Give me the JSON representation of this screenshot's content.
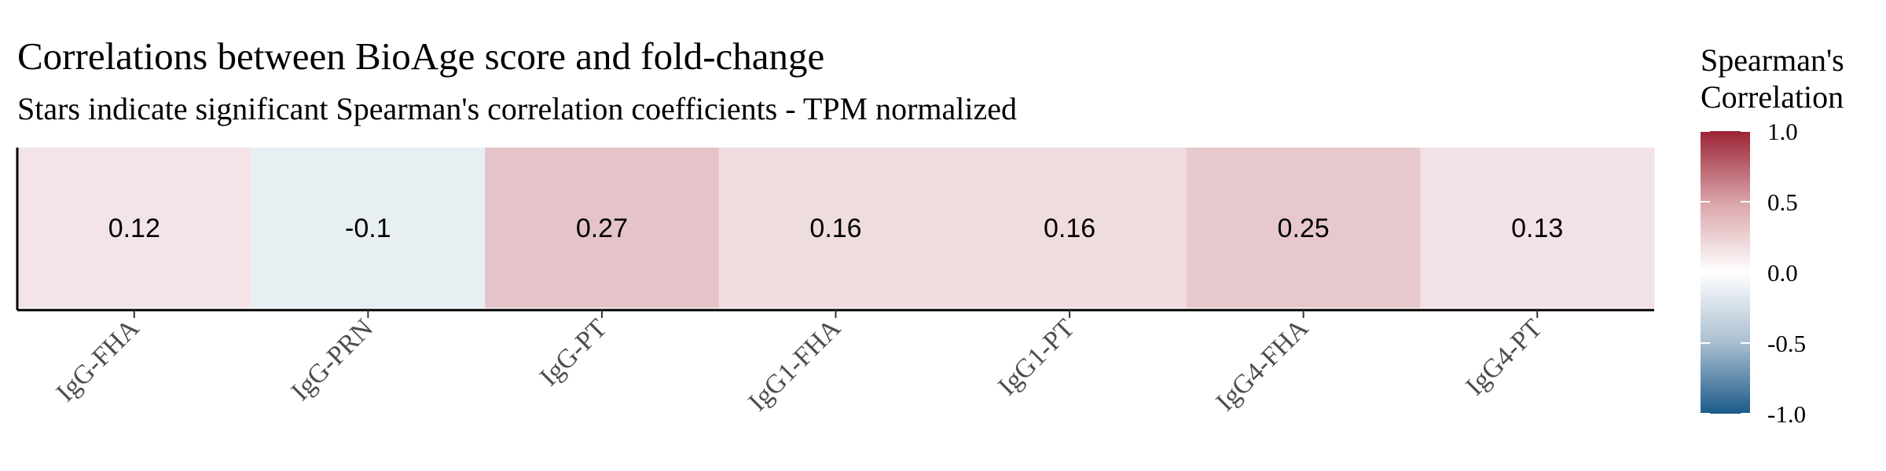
{
  "chart_data": {
    "type": "heatmap",
    "title": "Correlations between BioAge score and fold-change",
    "subtitle": "Stars indicate significant Spearman's correlation coefficients - TPM normalized",
    "categories": [
      "IgG-FHA",
      "IgG-PRN",
      "IgG-PT",
      "IgG1-FHA",
      "IgG1-PT",
      "IgG4-FHA",
      "IgG4-PT"
    ],
    "values": [
      0.12,
      -0.1,
      0.27,
      0.16,
      0.16,
      0.25,
      0.13
    ],
    "value_labels": [
      "0.12",
      "-0.1",
      "0.27",
      "0.16",
      "0.16",
      "0.25",
      "0.13"
    ],
    "xlabel": "",
    "ylabel": "",
    "grid": false,
    "legend": {
      "title_lines": [
        "Spearman's",
        "Correlation"
      ],
      "placement": "right",
      "range": [
        -1.0,
        1.0
      ],
      "ticks": [
        1.0,
        0.5,
        0.0,
        -0.5,
        -1.0
      ],
      "tick_labels": [
        "1.0",
        "0.5",
        "0.0",
        "-0.5",
        "-1.0"
      ],
      "colors": {
        "low": "#1b5a8a",
        "mid": "#ffffff",
        "high": "#9b2335"
      }
    }
  }
}
